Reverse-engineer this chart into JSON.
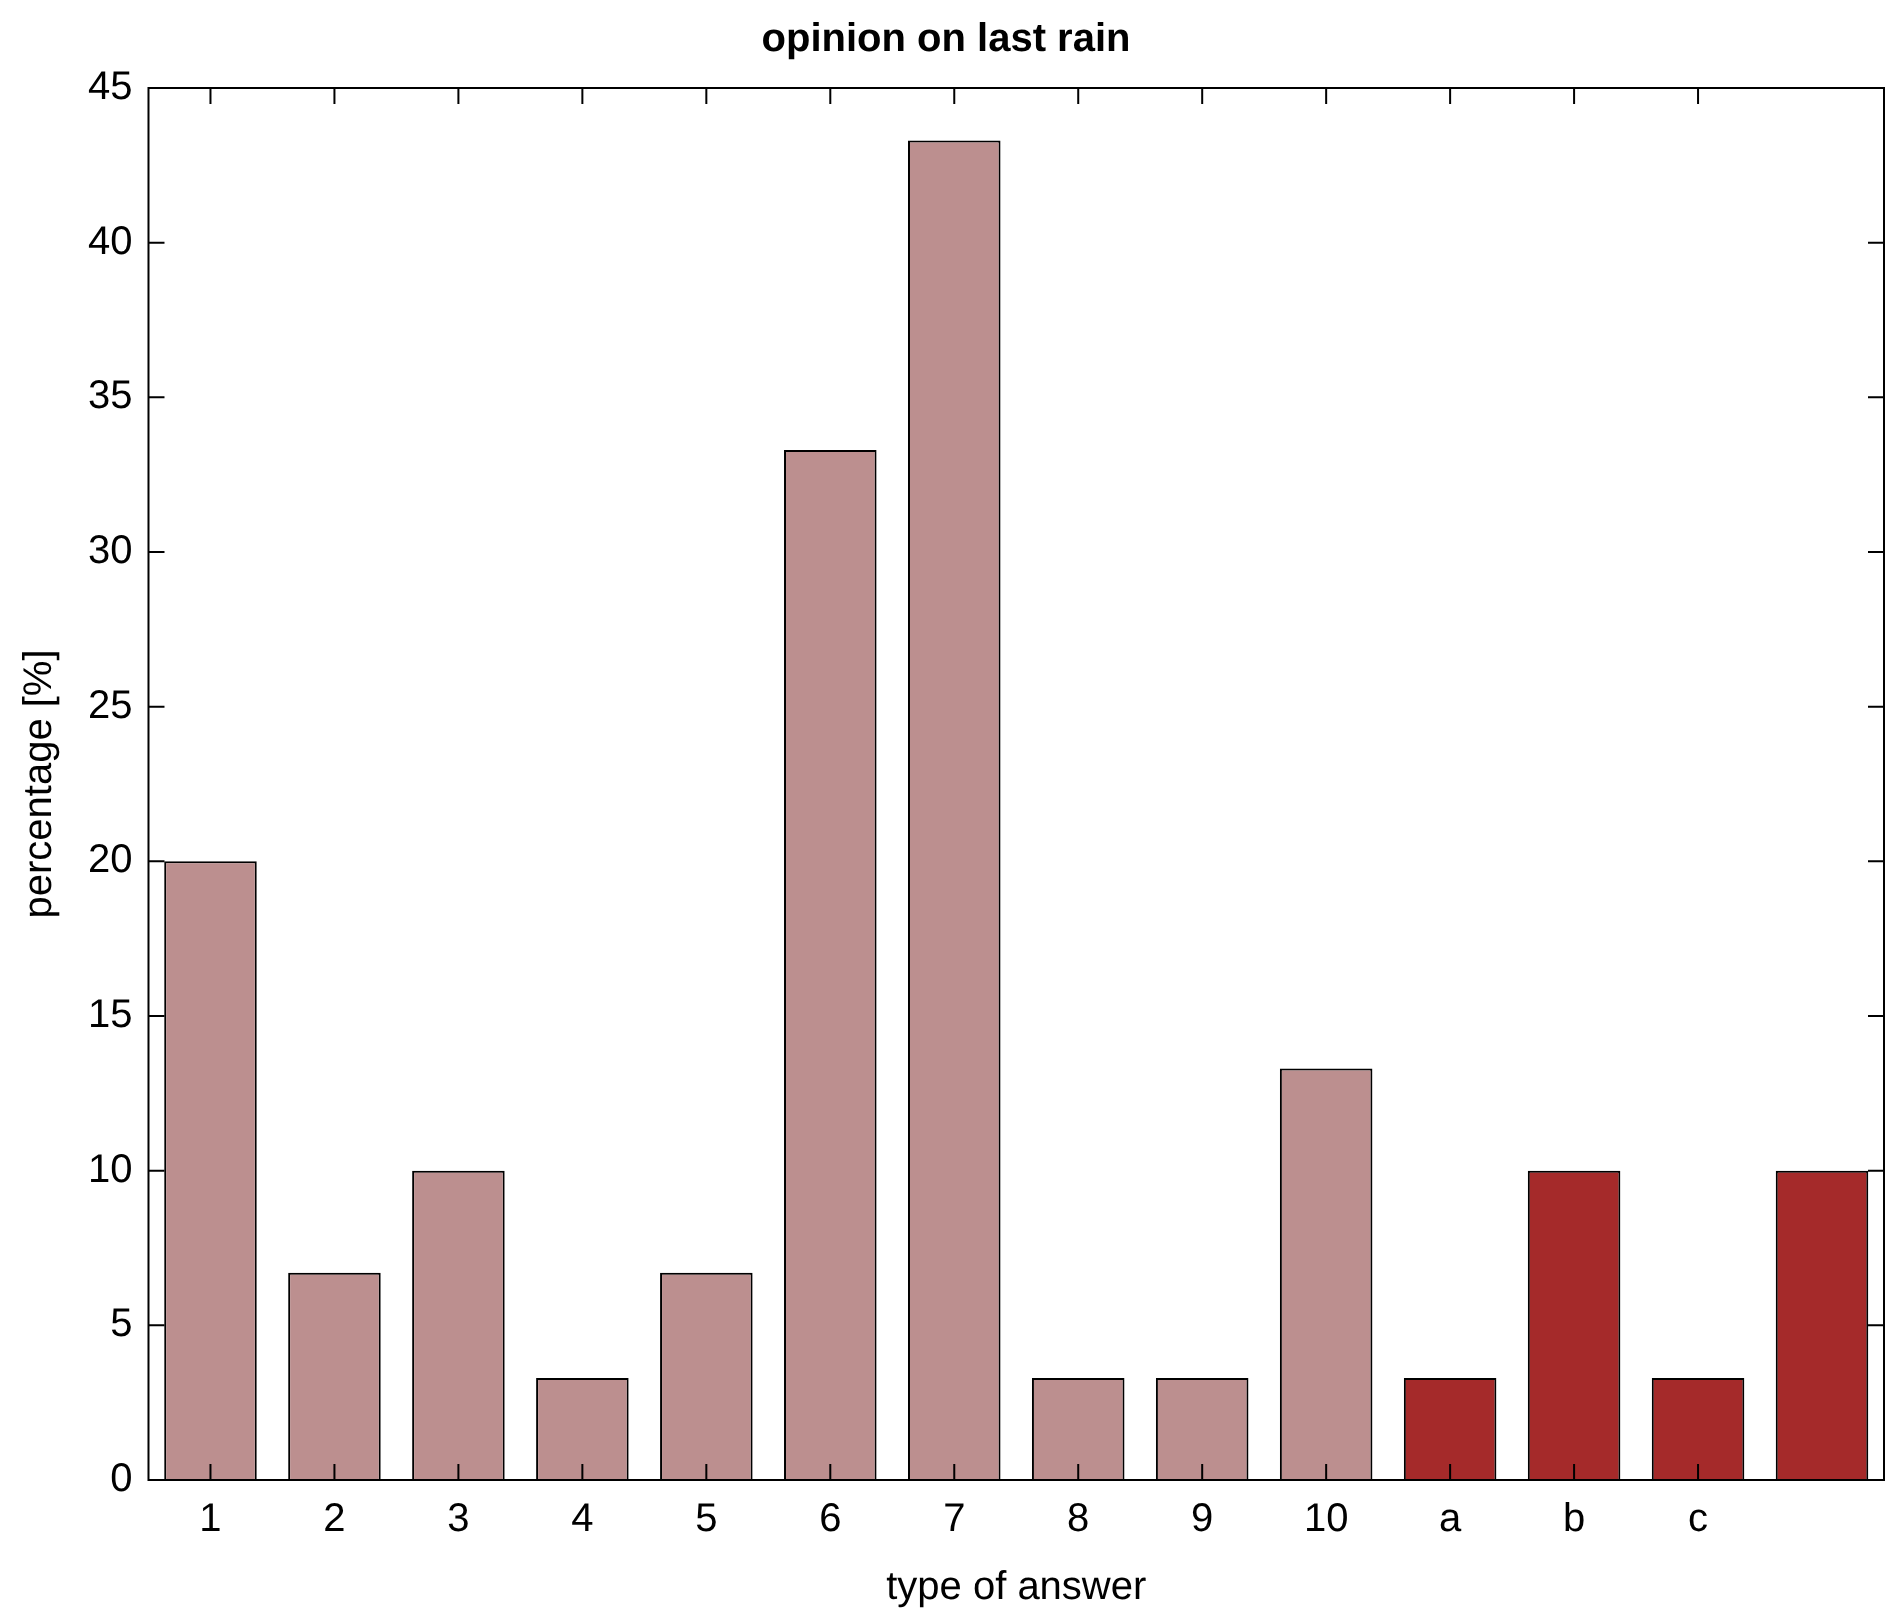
{
  "chart_data": {
    "type": "bar",
    "title": "opinion on last rain",
    "xlabel": "type of answer",
    "ylabel": "percentage [%]",
    "categories": [
      "1",
      "2",
      "3",
      "4",
      "5",
      "6",
      "7",
      "8",
      "9",
      "10",
      "a",
      "b",
      "c",
      null
    ],
    "values": [
      20,
      6.7,
      10,
      3.3,
      6.7,
      33.3,
      43.3,
      3.3,
      3.3,
      13.3,
      3.3,
      10,
      3.3,
      10
    ],
    "colors": [
      "#bc8f8f",
      "#bc8f8f",
      "#bc8f8f",
      "#bc8f8f",
      "#bc8f8f",
      "#bc8f8f",
      "#bc8f8f",
      "#bc8f8f",
      "#bc8f8f",
      "#bc8f8f",
      "#a52a2a",
      "#a52a2a",
      "#a52a2a",
      "#a52a2a"
    ],
    "ylim": [
      0,
      45
    ],
    "yticks": [
      0,
      5,
      10,
      15,
      20,
      25,
      30,
      35,
      40,
      45
    ]
  }
}
